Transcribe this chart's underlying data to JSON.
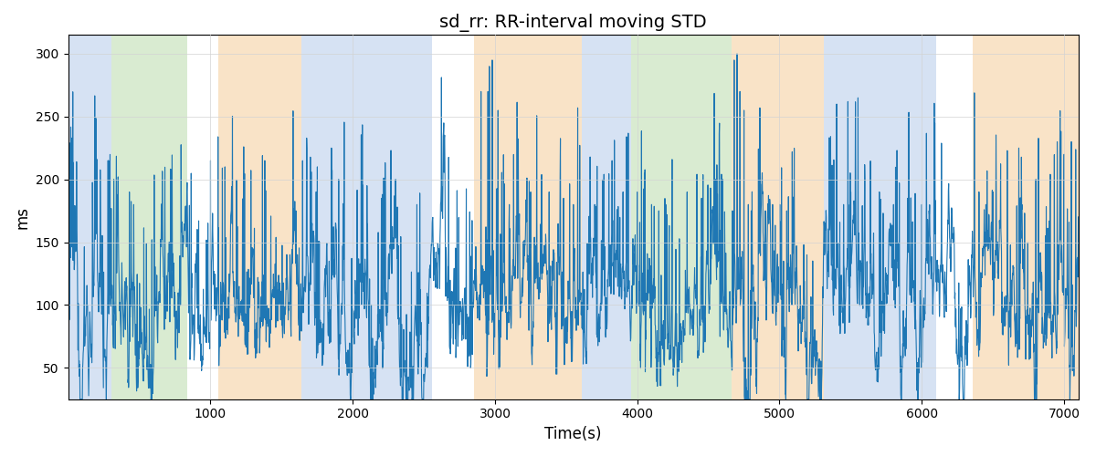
{
  "title": "sd_rr: RR-interval moving STD",
  "xlabel": "Time(s)",
  "ylabel": "ms",
  "xlim": [
    0,
    7100
  ],
  "ylim": [
    25,
    315
  ],
  "line_color": "#1f77b4",
  "line_width": 0.8,
  "bands": [
    {
      "start": 0,
      "end": 305,
      "color": "#aec6e8",
      "alpha": 0.5
    },
    {
      "start": 305,
      "end": 840,
      "color": "#b5d9a5",
      "alpha": 0.5
    },
    {
      "start": 1055,
      "end": 1640,
      "color": "#f5c990",
      "alpha": 0.5
    },
    {
      "start": 1640,
      "end": 2560,
      "color": "#aec6e8",
      "alpha": 0.5
    },
    {
      "start": 2855,
      "end": 3610,
      "color": "#f5c990",
      "alpha": 0.5
    },
    {
      "start": 3610,
      "end": 3960,
      "color": "#aec6e8",
      "alpha": 0.5
    },
    {
      "start": 3960,
      "end": 4660,
      "color": "#b5d9a5",
      "alpha": 0.5
    },
    {
      "start": 4660,
      "end": 5310,
      "color": "#f5c990",
      "alpha": 0.5
    },
    {
      "start": 5310,
      "end": 6100,
      "color": "#aec6e8",
      "alpha": 0.5
    },
    {
      "start": 6360,
      "end": 7100,
      "color": "#f5c990",
      "alpha": 0.5
    }
  ],
  "yticks": [
    50,
    100,
    150,
    200,
    250,
    300
  ],
  "xticks": [
    1000,
    2000,
    3000,
    4000,
    5000,
    6000,
    7000
  ],
  "figsize": [
    12,
    5
  ],
  "dpi": 100,
  "seed": 12345,
  "n_points": 3500
}
